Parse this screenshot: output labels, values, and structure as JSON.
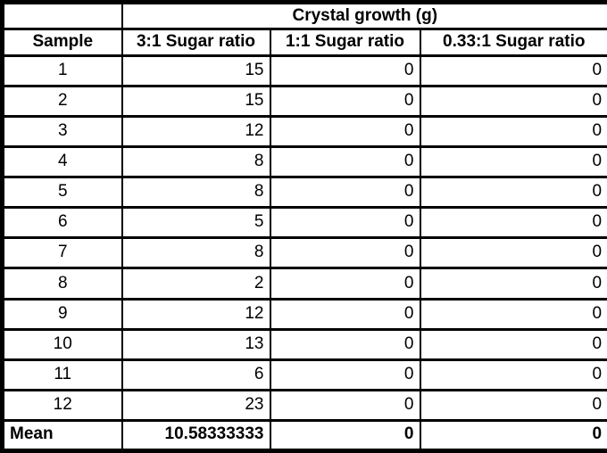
{
  "table": {
    "title": "Crystal growth (g)",
    "corner_label": "",
    "headers": [
      "Sample",
      "3:1 Sugar ratio",
      "1:1 Sugar ratio",
      "0.33:1 Sugar ratio"
    ],
    "rows": [
      {
        "sample": "1",
        "r3": "15",
        "r1": "0",
        "r033": "0"
      },
      {
        "sample": "2",
        "r3": "15",
        "r1": "0",
        "r033": "0"
      },
      {
        "sample": "3",
        "r3": "12",
        "r1": "0",
        "r033": "0"
      },
      {
        "sample": "4",
        "r3": "8",
        "r1": "0",
        "r033": "0"
      },
      {
        "sample": "5",
        "r3": "8",
        "r1": "0",
        "r033": "0"
      },
      {
        "sample": "6",
        "r3": "5",
        "r1": "0",
        "r033": "0"
      },
      {
        "sample": "7",
        "r3": "8",
        "r1": "0",
        "r033": "0"
      },
      {
        "sample": "8",
        "r3": "2",
        "r1": "0",
        "r033": "0"
      },
      {
        "sample": "9",
        "r3": "12",
        "r1": "0",
        "r033": "0"
      },
      {
        "sample": "10",
        "r3": "13",
        "r1": "0",
        "r033": "0"
      },
      {
        "sample": "11",
        "r3": "6",
        "r1": "0",
        "r033": "0"
      },
      {
        "sample": "12",
        "r3": "23",
        "r1": "0",
        "r033": "0"
      }
    ],
    "mean": {
      "label": "Mean",
      "r3": "10.58333333",
      "r1": "0",
      "r033": "0"
    }
  },
  "colors": {
    "border": "#000000",
    "background": "#ffffff",
    "text": "#000000"
  },
  "chart_data": {
    "type": "table",
    "title": "Crystal growth (g)",
    "columns": [
      "Sample",
      "3:1 Sugar ratio",
      "1:1 Sugar ratio",
      "0.33:1 Sugar ratio"
    ],
    "rows": [
      [
        1,
        15,
        0,
        0
      ],
      [
        2,
        15,
        0,
        0
      ],
      [
        3,
        12,
        0,
        0
      ],
      [
        4,
        8,
        0,
        0
      ],
      [
        5,
        8,
        0,
        0
      ],
      [
        6,
        5,
        0,
        0
      ],
      [
        7,
        8,
        0,
        0
      ],
      [
        8,
        2,
        0,
        0
      ],
      [
        9,
        12,
        0,
        0
      ],
      [
        10,
        13,
        0,
        0
      ],
      [
        11,
        6,
        0,
        0
      ],
      [
        12,
        23,
        0,
        0
      ]
    ],
    "summary_row": [
      "Mean",
      10.58333333,
      0,
      0
    ],
    "notes": "Black grid borders, white background, bold title/header/mean rows; numeric cells right-aligned, sample numbers centered."
  }
}
